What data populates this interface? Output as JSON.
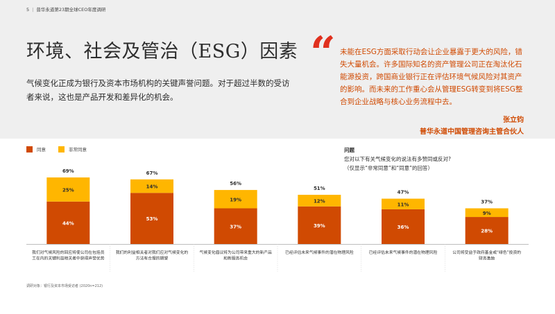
{
  "header": {
    "page_number": "5",
    "report_title": "普华永道第23期全球CEO年度调研"
  },
  "title": "环境、社会及管治（ESG）因素",
  "intro": "气候变化正成为银行及资本市场机构的关键声誉问题。对于超过半数的受访者来说，这也是产品开发和差异化的机会。",
  "quote": {
    "mark": "“",
    "text": "未能在ESG方面采取行动会让企业暴露于更大的风险，错失大量机会。许多国际知名的资产管理公司正在淘汰化石能源投资，跨国商业银行正在评估环境气候风险对其资产的影响。而未来的工作重心会从管理ESG转变到将ESG整合到企业战略与核心业务流程中去。",
    "author": "张立钧",
    "role": "普华永道中国管理咨询主管合伙人"
  },
  "question": {
    "title": "问题",
    "text": "您对以下有关气候变化的说法有多赞同或反对?",
    "note": "（仅显示“非常同意”和“同意”的回答）"
  },
  "footnote": "调研对象：银行及资本市场受访者 (2020n=212)",
  "colors": {
    "agree": "#d04a02",
    "strongly_agree": "#ffb600",
    "accent": "#e0301e"
  },
  "chart_data": {
    "type": "bar",
    "stacked": true,
    "categories": [
      "我们对气候风险的回应将使公司在包括员工在内的关键利益相关者中获得声誉优势",
      "我们的利益相关者对我们应对气候变化的方法有合理的期望",
      "气候变化倡议将为公司带来重大的新产品和新服务机会",
      "已经评估未来气候事件的潜在物理风险",
      "已经评估未来气候事件的潜在物理风险",
      "公司将受益于政府基金或“绿色”投资的财务激励"
    ],
    "series": [
      {
        "name": "同意",
        "values": [
          44,
          53,
          37,
          39,
          36,
          28
        ],
        "labels": [
          "44%",
          "53%",
          "37%",
          "39%",
          "36%",
          "28%"
        ]
      },
      {
        "name": "非常同意",
        "values": [
          25,
          14,
          19,
          12,
          11,
          9
        ],
        "labels": [
          "25%",
          "14%",
          "19%",
          "12%",
          "11%",
          "9%"
        ]
      }
    ],
    "totals": [
      69,
      67,
      56,
      51,
      47,
      37
    ],
    "total_labels": [
      "69%",
      "67%",
      "56%",
      "51%",
      "47%",
      "37%"
    ],
    "legend": "top-left",
    "ylim": [
      0,
      69
    ],
    "grid": false
  }
}
